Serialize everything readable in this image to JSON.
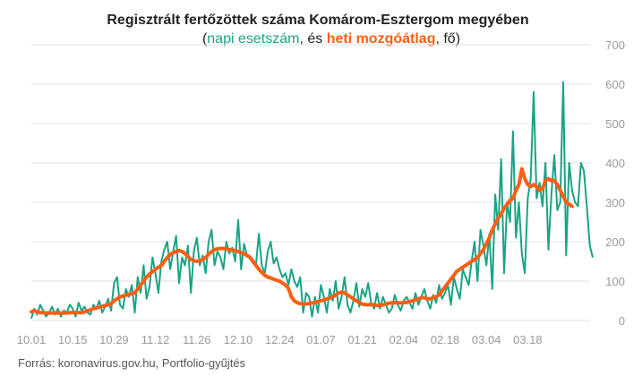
{
  "chart_data": {
    "type": "line",
    "title": "Regisztrált fertőzöttek száma Komárom-Esztergom megyében",
    "subtitle": {
      "open": "(",
      "daily_label": "napi esetszám",
      "middle": ", és ",
      "weekly_label": "heti mozgóátlag",
      "close": ", fő)"
    },
    "source": "Forrás: koronavirus.gov.hu, Portfolio-gyűjtés",
    "x_start_date": "2020-10-01",
    "x_tick_labels": [
      "10.01",
      "10.15",
      "10.29",
      "11.12",
      "11.26",
      "12.10",
      "12.24",
      "01.07",
      "01.21",
      "02.04",
      "02.18",
      "03.04",
      "03.18"
    ],
    "x_tick_dates": [
      "2020-10-01",
      "2020-10-15",
      "2020-10-29",
      "2020-11-12",
      "2020-11-26",
      "2020-12-10",
      "2020-12-24",
      "2021-01-07",
      "2021-01-21",
      "2021-02-04",
      "2021-02-18",
      "2021-03-04",
      "2021-03-18"
    ],
    "ylim": [
      0,
      700
    ],
    "y_ticks": [
      0,
      100,
      200,
      300,
      400,
      500,
      600,
      700
    ],
    "grid": true,
    "colors": {
      "daily": "#1aa386",
      "weekly": "#ff5e14"
    },
    "series": [
      {
        "name": "napi esetszám",
        "values": [
          5,
          30,
          15,
          40,
          25,
          10,
          20,
          35,
          15,
          30,
          10,
          25,
          20,
          40,
          30,
          10,
          45,
          25,
          35,
          20,
          15,
          40,
          30,
          50,
          20,
          35,
          55,
          25,
          95,
          110,
          40,
          30,
          80,
          60,
          90,
          20,
          110,
          70,
          140,
          55,
          85,
          160,
          120,
          70,
          150,
          180,
          200,
          130,
          175,
          215,
          95,
          160,
          140,
          190,
          70,
          175,
          210,
          140,
          165,
          120,
          200,
          230,
          140,
          175,
          160,
          130,
          200,
          170,
          185,
          150,
          255,
          130,
          195,
          165,
          160,
          150,
          140,
          220,
          140,
          120,
          175,
          200,
          145,
          160,
          130,
          110,
          120,
          90,
          130,
          100,
          85,
          110,
          20,
          70,
          60,
          10,
          60,
          20,
          90,
          60,
          20,
          80,
          50,
          100,
          30,
          60,
          110,
          40,
          20,
          50,
          95,
          35,
          80,
          60,
          95,
          45,
          30,
          70,
          30,
          60,
          40,
          20,
          30,
          65,
          40,
          25,
          50,
          60,
          45,
          30,
          70,
          40,
          60,
          80,
          50,
          30,
          65,
          45,
          90,
          55,
          70,
          90,
          40,
          110,
          80,
          55,
          130,
          110,
          90,
          150,
          200,
          100,
          230,
          190,
          140,
          220,
          80,
          320,
          230,
          410,
          120,
          300,
          250,
          480,
          210,
          300,
          170,
          120,
          310,
          360,
          580,
          310,
          350,
          290,
          400,
          180,
          320,
          420,
          280,
          300,
          605,
          165,
          400,
          330,
          300,
          290,
          400,
          380,
          290,
          190,
          160
        ]
      },
      {
        "name": "heti mozgóátlag",
        "values": [
          22,
          25,
          22,
          20,
          20,
          19,
          19,
          19,
          19,
          19,
          19,
          19,
          19,
          20,
          20,
          20,
          20,
          20,
          22,
          25,
          27,
          30,
          32,
          34,
          36,
          38,
          40,
          42,
          50,
          55,
          60,
          62,
          64,
          66,
          68,
          70,
          80,
          90,
          100,
          110,
          118,
          124,
          130,
          135,
          140,
          150,
          160,
          168,
          172,
          175,
          178,
          175,
          170,
          162,
          155,
          152,
          150,
          152,
          155,
          160,
          168,
          175,
          180,
          182,
          183,
          183,
          182,
          180,
          178,
          178,
          175,
          172,
          170,
          165,
          160,
          150,
          140,
          130,
          122,
          115,
          110,
          108,
          105,
          102,
          100,
          95,
          90,
          82,
          60,
          50,
          45,
          43,
          42,
          42,
          43,
          45,
          45,
          48,
          50,
          52,
          55,
          57,
          60,
          65,
          70,
          72,
          70,
          65,
          60,
          55,
          50,
          45,
          42,
          40,
          40,
          40,
          40,
          38,
          38,
          40,
          42,
          44,
          45,
          45,
          45,
          45,
          45,
          46,
          48,
          50,
          52,
          55,
          58,
          58,
          55,
          55,
          58,
          60,
          65,
          75,
          85,
          95,
          105,
          115,
          125,
          130,
          135,
          140,
          145,
          150,
          155,
          160,
          170,
          180,
          195,
          210,
          230,
          245,
          260,
          270,
          285,
          295,
          305,
          310,
          330,
          345,
          385,
          360,
          345,
          340,
          345,
          340,
          330,
          335,
          355,
          360,
          355,
          355,
          345,
          330,
          315,
          300,
          295,
          290
        ]
      }
    ]
  }
}
